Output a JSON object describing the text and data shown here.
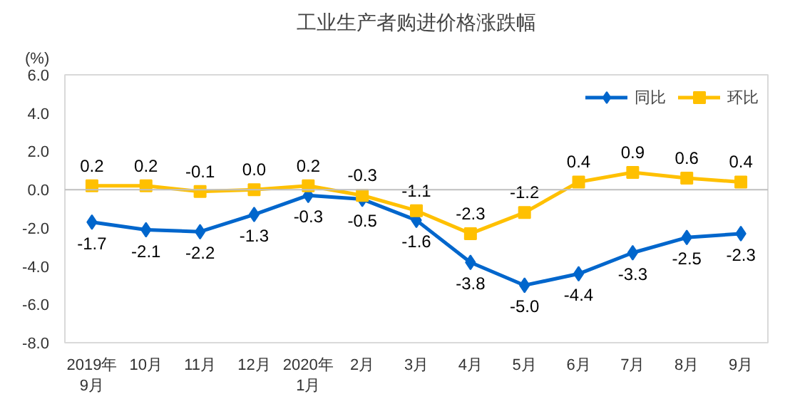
{
  "chart_data": {
    "type": "line",
    "title": "工业生产者购进价格涨跌幅",
    "ylabel": "(%)",
    "categories": [
      "2019年\n9月",
      "10月",
      "11月",
      "12月",
      "2020年\n1月",
      "2月",
      "3月",
      "4月",
      "5月",
      "6月",
      "7月",
      "8月",
      "9月"
    ],
    "series": [
      {
        "name": "同比",
        "color": "#0066cc",
        "marker": "diamond",
        "values": [
          -1.7,
          -2.1,
          -2.2,
          -1.3,
          -0.3,
          -0.5,
          -1.6,
          -3.8,
          -5.0,
          -4.4,
          -3.3,
          -2.5,
          -2.3
        ],
        "value_labels": [
          "-1.7",
          "-2.1",
          "-2.2",
          "-1.3",
          "-0.3",
          "-0.5",
          "-1.6",
          "-3.8",
          "-5.0",
          "-4.4",
          "-3.3",
          "-2.5",
          "-2.3"
        ]
      },
      {
        "name": "环比",
        "color": "#ffc000",
        "marker": "square",
        "values": [
          0.2,
          0.2,
          -0.1,
          0.0,
          0.2,
          -0.3,
          -1.1,
          -2.3,
          -1.2,
          0.4,
          0.9,
          0.6,
          0.4
        ],
        "value_labels": [
          "0.2",
          "0.2",
          "-0.1",
          "0.0",
          "0.2",
          "-0.3",
          "-1.1",
          "-2.3",
          "-1.2",
          "0.4",
          "0.9",
          "0.6",
          "0.4"
        ]
      }
    ],
    "ylim": [
      -8.0,
      6.0
    ],
    "yticks": [
      {
        "value": -8,
        "label": "-8.0"
      },
      {
        "value": -6,
        "label": "-6.0"
      },
      {
        "value": -4,
        "label": "-4.0"
      },
      {
        "value": -2,
        "label": "-2.0"
      },
      {
        "value": 0,
        "label": "0.0"
      },
      {
        "value": 2,
        "label": "2.0"
      },
      {
        "value": 4,
        "label": "4.0"
      },
      {
        "value": 6,
        "label": "6.0"
      }
    ],
    "ref_lines": [
      {
        "axis": "y",
        "value": 0
      }
    ],
    "grid": false,
    "legend": "top right"
  }
}
